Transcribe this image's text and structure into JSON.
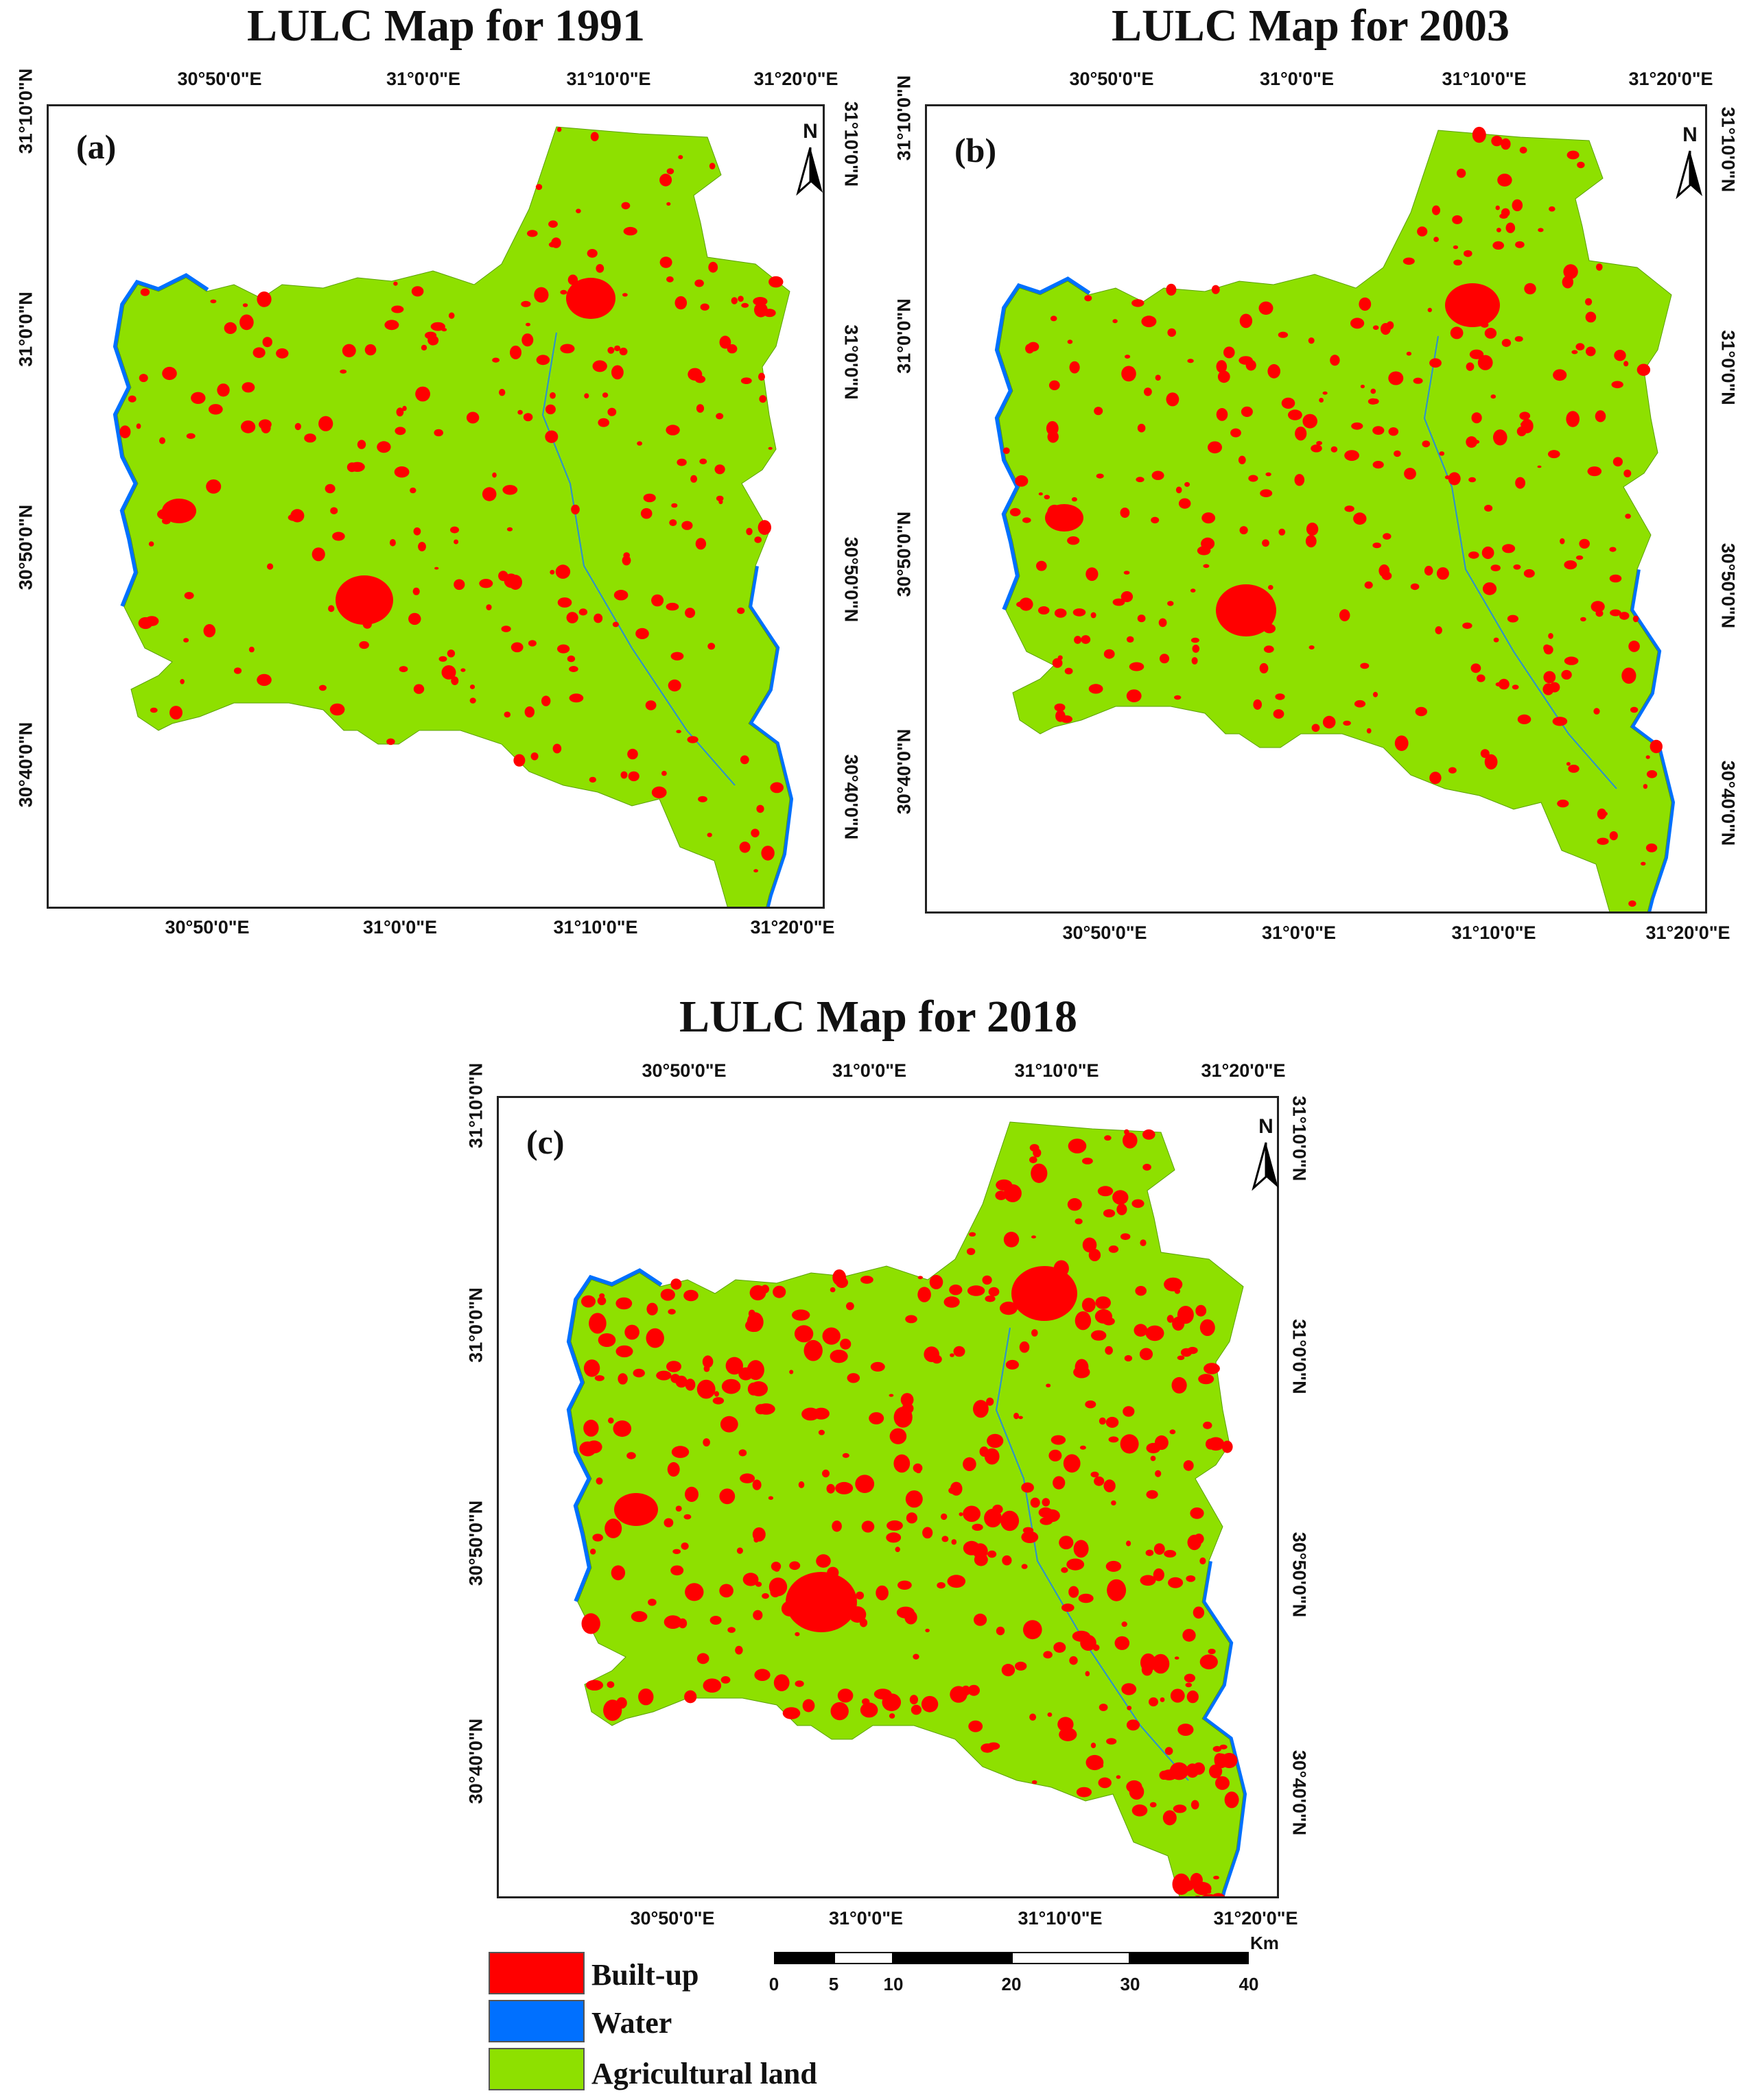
{
  "panels": [
    {
      "title": "LULC Map for 1991",
      "label": "(a)",
      "north": "N",
      "top_ticks": [
        "30°50'0\"E",
        "31°0'0\"E",
        "31°10'0\"E",
        "31°20'0\"E"
      ],
      "bottom_ticks": [
        "30°50'0\"E",
        "31°0'0\"E",
        "31°10'0\"E",
        "31°20'0\"E"
      ],
      "left_ticks": [
        "31°10'0\"N",
        "31°0'0\"N",
        "30°50'0\"N",
        "30°40'0\"N"
      ],
      "right_ticks": [
        "31°10'0\"N",
        "31°0'0\"N",
        "30°50'0\"N",
        "30°40'0\"N"
      ]
    },
    {
      "title": "LULC Map for 2003",
      "label": "(b)",
      "north": "N",
      "top_ticks": [
        "30°50'0\"E",
        "31°0'0\"E",
        "31°10'0\"E",
        "31°20'0\"E"
      ],
      "bottom_ticks": [
        "30°50'0\"E",
        "31°0'0\"E",
        "31°10'0\"E",
        "31°20'0\"E"
      ],
      "left_ticks": [
        "31°10'0\"N",
        "31°0'0\"N",
        "30°50'0\"N",
        "30°40'0\"N"
      ],
      "right_ticks": [
        "31°10'0\"N",
        "31°0'0\"N",
        "30°50'0\"N",
        "30°40'0\"N"
      ]
    },
    {
      "title": "LULC Map for 2018",
      "label": "(c)",
      "north": "N",
      "top_ticks": [
        "30°50'0\"E",
        "31°0'0\"E",
        "31°10'0\"E",
        "31°20'0\"E"
      ],
      "bottom_ticks": [
        "30°50'0\"E",
        "31°0'0\"E",
        "31°10'0\"E",
        "31°20'0\"E"
      ],
      "left_ticks": [
        "31°10'0\"N",
        "31°0'0\"N",
        "30°50'0\"N",
        "30°40'0\"N"
      ],
      "right_ticks": [
        "31°10'0\"N",
        "31°0'0\"N",
        "30°50'0\"N",
        "30°40'0\"N"
      ]
    }
  ],
  "legend": [
    {
      "label": "Built-up",
      "color": "#ff0000"
    },
    {
      "label": "Water",
      "color": "#0070ff"
    },
    {
      "label": "Agricultural land",
      "color": "#8ee000"
    }
  ],
  "scale": {
    "unit": "Km",
    "labels": [
      "0",
      "5",
      "10",
      "20",
      "30",
      "40"
    ]
  }
}
